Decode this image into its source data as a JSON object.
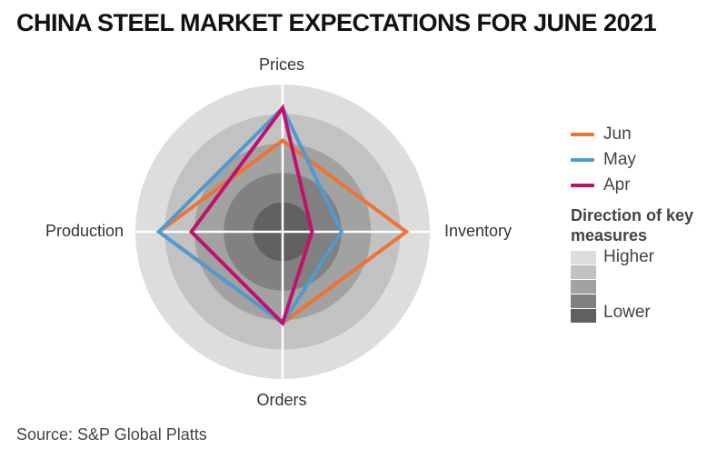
{
  "chart_data": {
    "type": "radar",
    "title": "CHINA STEEL MARKET EXPECTATIONS FOR JUNE 2021",
    "axes": [
      "Prices",
      "Inventory",
      "Orders",
      "Production"
    ],
    "levels": 5,
    "scale_max": 5,
    "series": [
      {
        "name": "Jun",
        "color": "#f07234",
        "values": [
          3.1,
          4.2,
          3.1,
          4.2
        ]
      },
      {
        "name": "May",
        "color": "#4d9bd0",
        "values": [
          4.2,
          2.0,
          3.1,
          4.2
        ]
      },
      {
        "name": "Apr",
        "color": "#c2116d",
        "values": [
          4.2,
          1.0,
          3.1,
          3.1
        ]
      }
    ],
    "level_colors": [
      "#616161",
      "#818181",
      "#a2a2a2",
      "#c2c2c2",
      "#dddddd"
    ],
    "legend_title": "Direction of key measures",
    "scale_labels": {
      "high": "Higher",
      "low": "Lower"
    },
    "source": "Source: S&P Global Platts"
  }
}
